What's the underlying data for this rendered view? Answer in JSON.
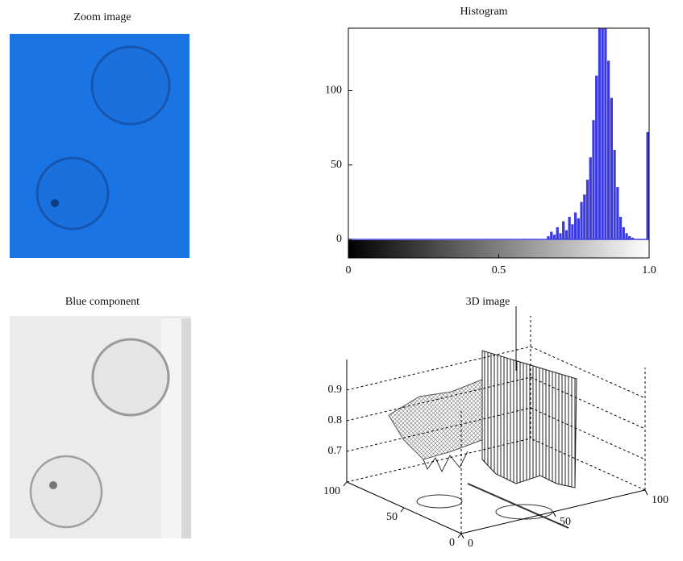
{
  "chart_data": [
    {
      "type": "image",
      "title": "Zoom image"
    },
    {
      "type": "histogram",
      "title": "Histogram",
      "bins": [
        0.66,
        0.67,
        0.68,
        0.69,
        0.7,
        0.71,
        0.72,
        0.73,
        0.74,
        0.75,
        0.76,
        0.77,
        0.78,
        0.79,
        0.8,
        0.81,
        0.82,
        0.83,
        0.84,
        0.85,
        0.86,
        0.87,
        0.88,
        0.89,
        0.9,
        0.91,
        0.92,
        0.93,
        0.94,
        0.95,
        0.96,
        0.97,
        0.98,
        0.99,
        1.0
      ],
      "values": [
        2,
        5,
        3,
        8,
        4,
        12,
        6,
        15,
        10,
        18,
        14,
        25,
        30,
        40,
        55,
        80,
        110,
        142,
        142,
        142,
        120,
        95,
        60,
        35,
        15,
        8,
        4,
        2,
        1,
        0,
        0,
        0,
        0,
        72
      ],
      "color": "#3a3ae0",
      "xlim": [
        0,
        1
      ],
      "xticks": [
        0,
        0.5,
        {
          "value": 1,
          "label": "1.0"
        }
      ],
      "ylim": [
        -12.5,
        142
      ],
      "yticks": [
        0,
        50,
        100
      ]
    },
    {
      "type": "image",
      "title": "Blue component"
    },
    {
      "type": "surface",
      "title": "3D image",
      "xlim": [
        0,
        100
      ],
      "ylim": [
        0,
        100
      ],
      "zlim": [
        0.6,
        1.0
      ],
      "xticks": [
        0,
        50,
        100
      ],
      "yticks": [
        0,
        50,
        100
      ],
      "zticks": [
        0.7,
        0.8,
        0.9
      ]
    }
  ]
}
